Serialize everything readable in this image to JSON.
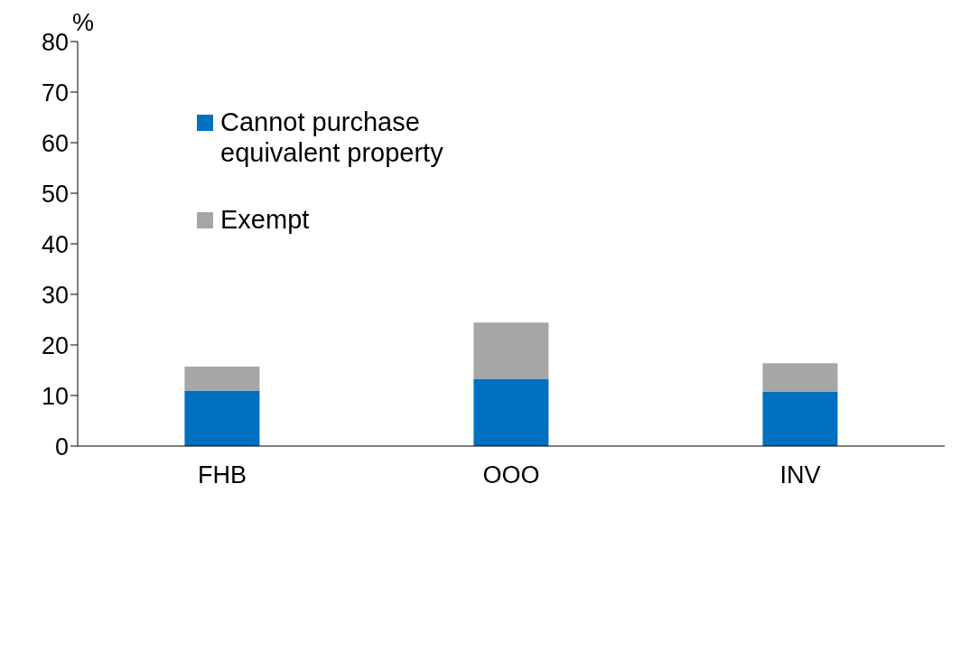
{
  "chart_data": {
    "type": "bar",
    "stacked": true,
    "ylabel": "%",
    "categories": [
      "FHB",
      "OOO",
      "INV"
    ],
    "series": [
      {
        "name": "Cannot purchase equivalent property",
        "color": "#0070c0",
        "values": [
          11.0,
          13.3,
          10.8
        ]
      },
      {
        "name": "Exempt",
        "color": "#a6a6a6",
        "values": [
          4.7,
          11.1,
          5.6
        ]
      }
    ],
    "ylim": [
      0,
      80
    ],
    "yticks": [
      0,
      10,
      20,
      30,
      40,
      50,
      60,
      70,
      80
    ],
    "grid": false,
    "legend": "top left"
  }
}
